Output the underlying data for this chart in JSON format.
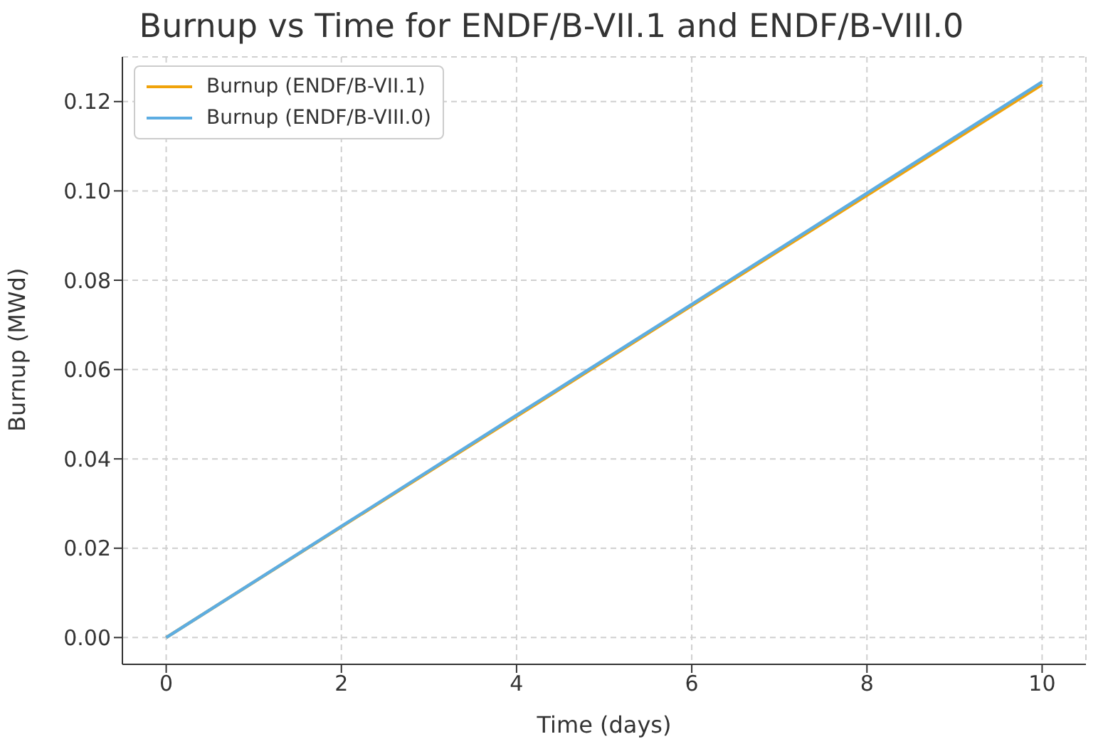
{
  "chart_data": {
    "type": "line",
    "title": "Burnup vs Time for ENDF/B-VII.1 and ENDF/B-VIII.0",
    "xlabel": "Time (days)",
    "ylabel": "Burnup (MWd)",
    "x": [
      0,
      2,
      4,
      6,
      8,
      10
    ],
    "series": [
      {
        "name": "Burnup (ENDF/B-VII.1)",
        "color": "#f0a30a",
        "values": [
          0,
          0.0248,
          0.0495,
          0.0743,
          0.099,
          0.1238
        ]
      },
      {
        "name": "Burnup (ENDF/B-VIII.0)",
        "color": "#5dade2",
        "values": [
          0,
          0.0249,
          0.0498,
          0.0746,
          0.0995,
          0.1244
        ]
      }
    ],
    "xlim": [
      -0.5,
      10.5
    ],
    "xticks": [
      0,
      2,
      4,
      6,
      8,
      10
    ],
    "ylim": [
      -0.006,
      0.13
    ],
    "yticks": [
      {
        "value": 0,
        "label": "0.00"
      },
      {
        "value": 0.02,
        "label": "0.02"
      },
      {
        "value": 0.04,
        "label": "0.04"
      },
      {
        "value": 0.06,
        "label": "0.06"
      },
      {
        "value": 0.08,
        "label": "0.08"
      },
      {
        "value": 0.1,
        "label": "0.10"
      },
      {
        "value": 0.12,
        "label": "0.12"
      }
    ],
    "grid": true,
    "legend": "top left",
    "marker": "none",
    "line_style": "solid"
  }
}
